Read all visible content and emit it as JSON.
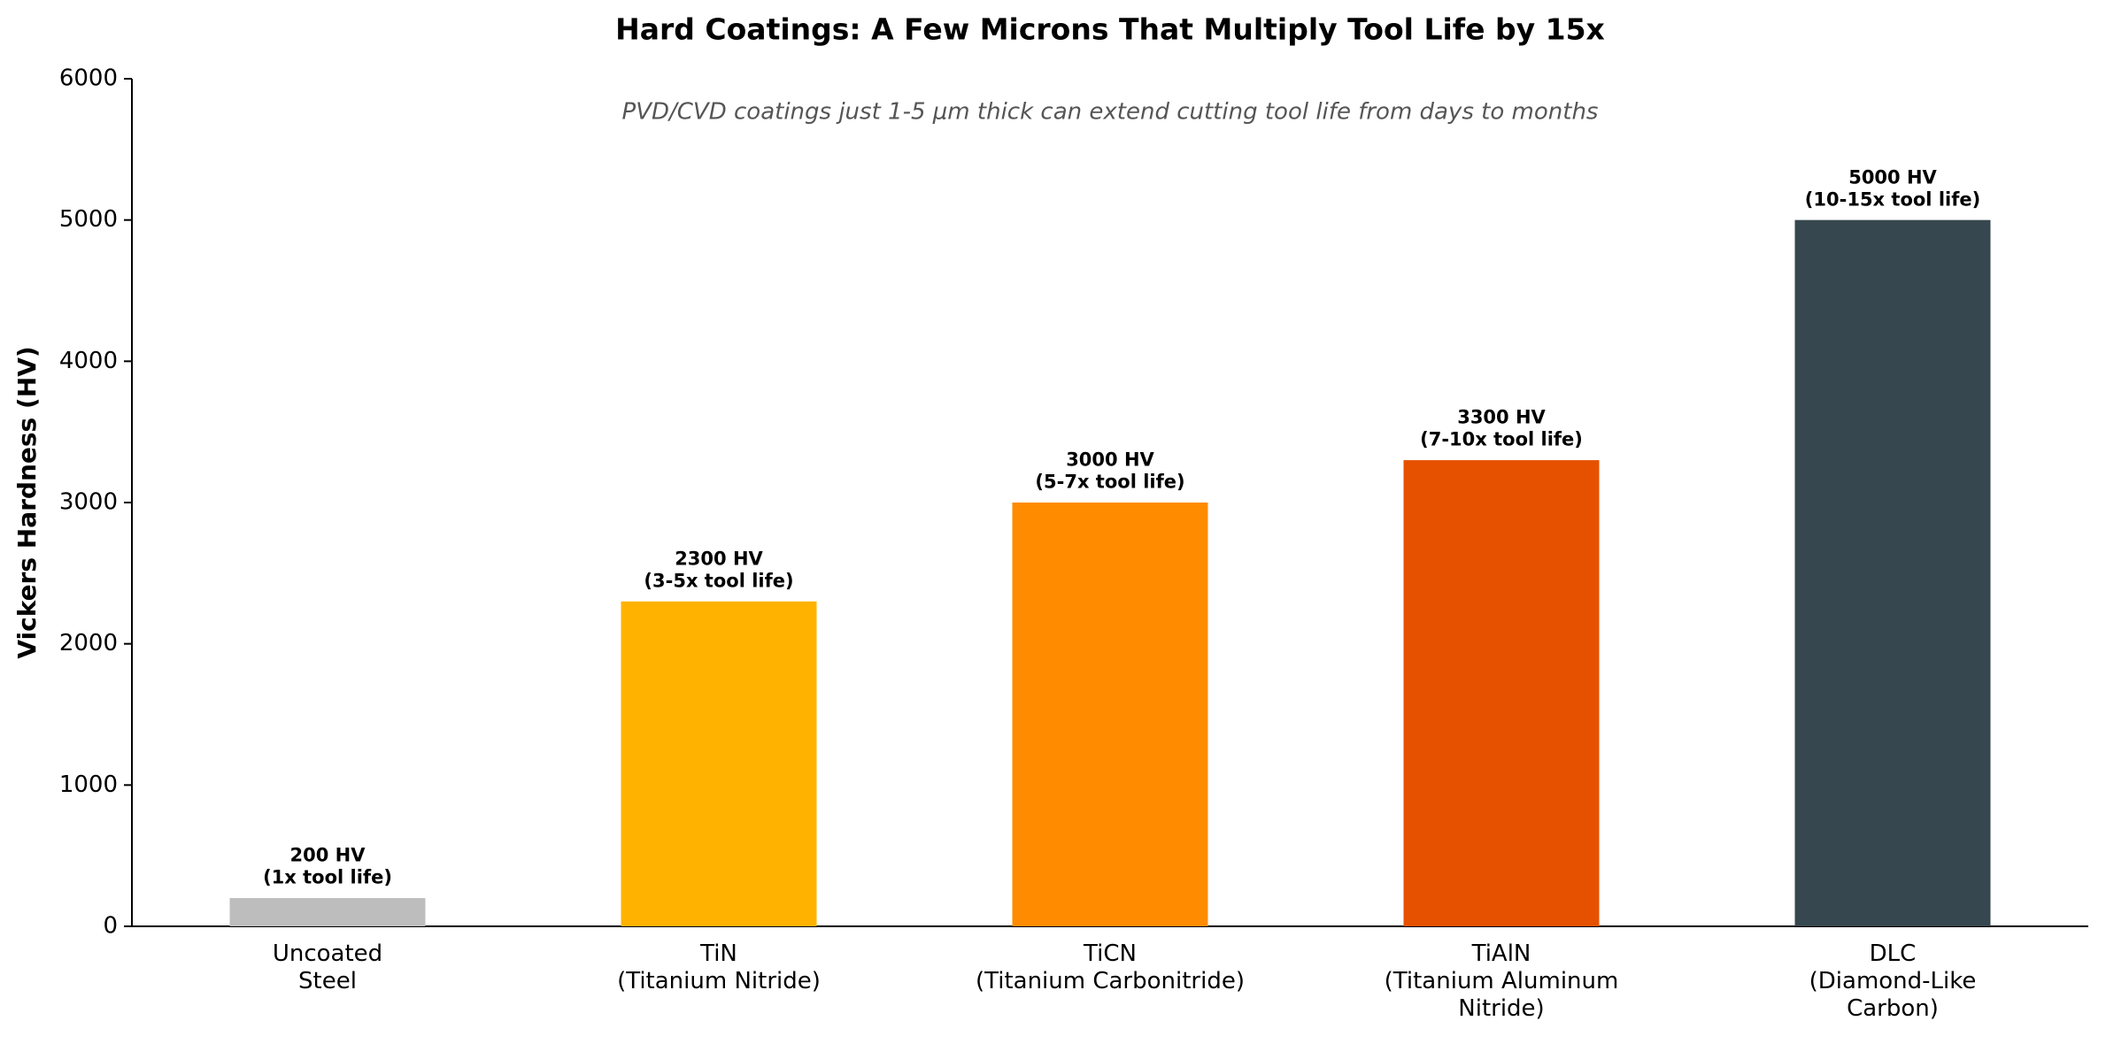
{
  "chart_data": {
    "type": "bar",
    "title": "Hard Coatings: A Few Microns That Multiply Tool Life by 15x",
    "subtitle": "PVD/CVD coatings just 1-5 μm thick can extend cutting tool life from days to months",
    "ylabel": "Vickers Hardness (HV)",
    "categories": [
      "Uncoated\nSteel",
      "TiN\n(Titanium Nitride)",
      "TiCN\n(Titanium Carbonitride)",
      "TiAlN\n(Titanium Aluminum\nNitride)",
      "DLC\n(Diamond-Like\nCarbon)"
    ],
    "values": [
      200,
      2300,
      3000,
      3300,
      5000
    ],
    "value_labels": [
      "200 HV\n(1x tool life)",
      "2300 HV\n(3-5x tool life)",
      "3000 HV\n(5-7x tool life)",
      "3300 HV\n(7-10x tool life)",
      "5000 HV\n(10-15x tool life)"
    ],
    "colors": [
      "#bdbdbd",
      "#ffb300",
      "#ff8c00",
      "#e65100",
      "#37474f"
    ],
    "ylim": [
      0,
      6000
    ],
    "yticks": [
      0,
      1000,
      2000,
      3000,
      4000,
      5000,
      6000
    ],
    "grid": false
  }
}
